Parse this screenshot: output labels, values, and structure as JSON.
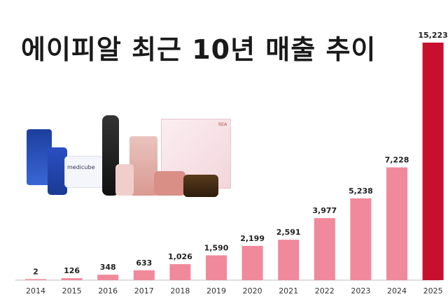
{
  "title": "에이피알 최근 10년 매출 추이",
  "chart_data": {
    "type": "bar",
    "title": "에이피알 최근 10년 매출 추이",
    "categories": [
      "2014",
      "2015",
      "2016",
      "2017",
      "2018",
      "2019",
      "2020",
      "2021",
      "2022",
      "2023",
      "2024",
      "2025"
    ],
    "values": [
      2,
      126,
      348,
      633,
      1026,
      1590,
      2199,
      2591,
      3977,
      5238,
      7228,
      15223
    ],
    "value_labels": [
      "2",
      "126",
      "348",
      "633",
      "1,026",
      "1,590",
      "2,199",
      "2,591",
      "3,977",
      "5,238",
      "7,228",
      "15,223"
    ],
    "ylim": [
      0,
      15223
    ],
    "xlabel": "",
    "ylabel": "",
    "grid": false,
    "colors": {
      "bar": "#f0899b",
      "highlight": "#c8102e",
      "axis": "#c0c0c0"
    }
  },
  "products": {
    "brand_text": "medicube",
    "box_badge": "REA"
  }
}
